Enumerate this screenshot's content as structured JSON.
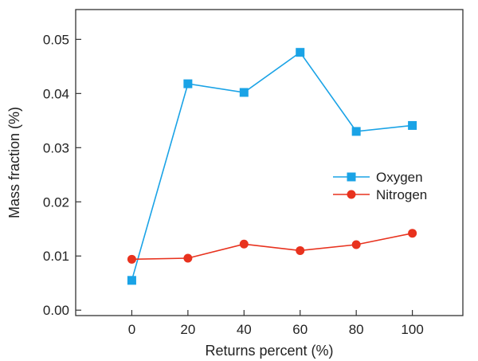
{
  "chart_data": {
    "type": "line",
    "title": "",
    "xlabel": "Returns percent (%)",
    "ylabel": "Mass fraction (%)",
    "x": [
      0,
      20,
      40,
      60,
      80,
      100
    ],
    "xticks": [
      "0",
      "20",
      "40",
      "60",
      "80",
      "100"
    ],
    "yticks": [
      "0.00",
      "0.01",
      "0.02",
      "0.03",
      "0.04",
      "0.05"
    ],
    "xlim": [
      -20,
      118
    ],
    "ylim": [
      -0.001,
      0.0555
    ],
    "grid": false,
    "legend_position": "right",
    "series": [
      {
        "name": "Oxygen",
        "color": "#1aa3e6",
        "marker": "square",
        "values": [
          0.0055,
          0.0418,
          0.0402,
          0.0476,
          0.033,
          0.0341
        ]
      },
      {
        "name": "Nitrogen",
        "color": "#e8321e",
        "marker": "circle",
        "values": [
          0.0094,
          0.0096,
          0.0122,
          0.011,
          0.0121,
          0.0142
        ]
      }
    ]
  }
}
